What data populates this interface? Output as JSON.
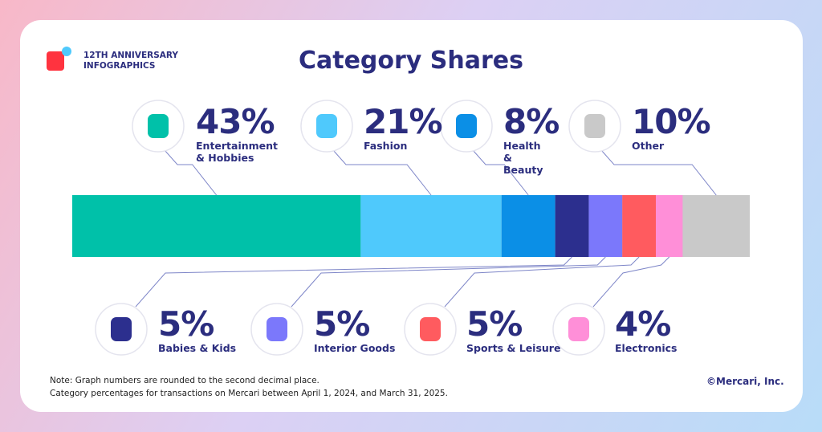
{
  "header": {
    "anniversary": "12TH ANNIVERSARY",
    "series_name": "INFOGRAPHICS"
  },
  "chart_data": {
    "type": "stacked-bar",
    "title": "Category Shares",
    "categories": [
      "Entertainment & Hobbies",
      "Fashion",
      "Health & Beauty",
      "Babies & Kids",
      "Interior Goods",
      "Sports & Leisure",
      "Electronics",
      "Other"
    ],
    "values": [
      43,
      21,
      8,
      5,
      5,
      5,
      4,
      10
    ],
    "value_labels": [
      "43%",
      "21%",
      "8%",
      "5%",
      "5%",
      "5%",
      "4%",
      "10%"
    ],
    "colors": [
      "#00c1a9",
      "#4fc9fc",
      "#0b8fe6",
      "#2c2f8e",
      "#7b78fb",
      "#ff5b5f",
      "#ff8fd8",
      "#c9c9c9"
    ],
    "xlim": [
      0,
      101
    ]
  },
  "footer": {
    "note_1": "Note: Graph numbers are rounded to the second decimal place.",
    "note_2": "Category percentages for transactions on Mercari between April 1, 2024, and March 31, 2025.",
    "copyright": "©Mercari, Inc."
  }
}
